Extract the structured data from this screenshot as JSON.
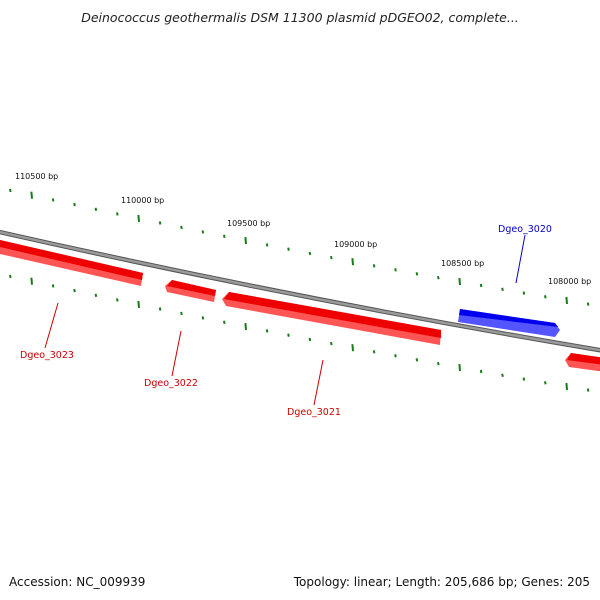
{
  "header": {
    "title": "Deinococcus geothermalis DSM 11300 plasmid pDGEO02, complete..."
  },
  "footer": {
    "accession": "Accession: NC_009939",
    "summary": "Topology: linear; Length: 205,686 bp; Genes: 205"
  },
  "ruler": {
    "ticks": [
      {
        "label": "110500 bp"
      },
      {
        "label": "110000 bp"
      },
      {
        "label": "109500 bp"
      },
      {
        "label": "109000 bp"
      },
      {
        "label": "108500 bp"
      },
      {
        "label": "108000 bp"
      }
    ]
  },
  "genes": [
    {
      "label": "Dgeo_3023",
      "strand": "reverse",
      "color": "#cc0000"
    },
    {
      "label": "Dgeo_3022",
      "strand": "reverse",
      "color": "#cc0000"
    },
    {
      "label": "Dgeo_3021",
      "strand": "reverse",
      "color": "#cc0000"
    },
    {
      "label": "Dgeo_3020",
      "strand": "forward",
      "color": "#0000cc"
    },
    {
      "label": "",
      "strand": "reverse",
      "color": "#cc0000"
    }
  ],
  "colors": {
    "backbone": "#888888",
    "tick": "#1a7a1a",
    "reverse_gene": "#ff0000",
    "forward_gene": "#0000ff"
  }
}
